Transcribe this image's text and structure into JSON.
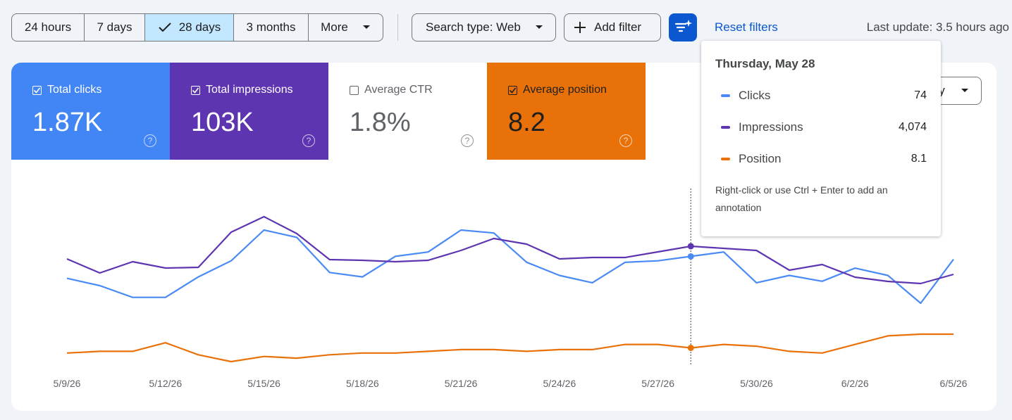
{
  "toolbar": {
    "date_ranges": [
      "24 hours",
      "7 days",
      "28 days",
      "3 months",
      "More"
    ],
    "selected": 2,
    "search_type": "Search type: Web",
    "add_filter": "Add filter",
    "reset": "Reset filters",
    "last_update": "Last update: 3.5 hours ago"
  },
  "metrics": [
    {
      "label": "Total clicks",
      "value": "1.87K",
      "checked": true,
      "color": "#4285f4"
    },
    {
      "label": "Total impressions",
      "value": "103K",
      "checked": true,
      "color": "#5e35b1"
    },
    {
      "label": "Average CTR",
      "value": "1.8%",
      "checked": false,
      "color": "#ffffff"
    },
    {
      "label": "Average position",
      "value": "8.2",
      "checked": true,
      "color": "#e8710a"
    }
  ],
  "granularity": "Daily",
  "tooltip": {
    "date": "Thursday, May 28",
    "rows": [
      {
        "name": "Clicks",
        "value": "74",
        "color": "#4a8af4"
      },
      {
        "name": "Impressions",
        "value": "4,074",
        "color": "#5e35b1"
      },
      {
        "name": "Position",
        "value": "8.1",
        "color": "#e8710a"
      }
    ],
    "note": "Right-click or use Ctrl + Enter to add an annotation"
  },
  "chart_data": {
    "type": "line",
    "categories": [
      "5/9/26",
      null,
      null,
      "5/12/26",
      null,
      null,
      "5/15/26",
      null,
      null,
      "5/18/26",
      null,
      null,
      "5/21/26",
      null,
      null,
      "5/24/26",
      null,
      null,
      "5/27/26",
      null,
      null,
      "5/30/26",
      null,
      null,
      "6/2/26",
      null,
      null,
      "6/5/26"
    ],
    "series": [
      {
        "name": "Clicks",
        "color": "#4a8af4",
        "inverted": false,
        "values": [
          59,
          54,
          46,
          46,
          60,
          71,
          92,
          87,
          63,
          60,
          74,
          77,
          92,
          90,
          70,
          61,
          56,
          70,
          71,
          74,
          77,
          56,
          61,
          57,
          66,
          61,
          42,
          72
        ]
      },
      {
        "name": "Impressions",
        "color": "#5e35b1",
        "inverted": false,
        "values": [
          3642,
          3163,
          3546,
          3331,
          3355,
          4553,
          5080,
          4505,
          3618,
          3594,
          3546,
          3594,
          3930,
          4337,
          4146,
          3642,
          3690,
          3690,
          3882,
          4074,
          4002,
          3930,
          3259,
          3451,
          3019,
          2876,
          2804,
          3115
        ]
      },
      {
        "name": "Position",
        "color": "#e8710a",
        "inverted": true,
        "values": [
          8.4,
          8.3,
          8.3,
          7.8,
          8.5,
          8.9,
          8.6,
          8.7,
          8.5,
          8.4,
          8.4,
          8.3,
          8.2,
          8.2,
          8.3,
          8.2,
          8.2,
          7.9,
          7.9,
          8.1,
          7.9,
          8.0,
          8.3,
          8.4,
          7.9,
          7.4,
          7.3,
          7.3
        ]
      }
    ]
  }
}
